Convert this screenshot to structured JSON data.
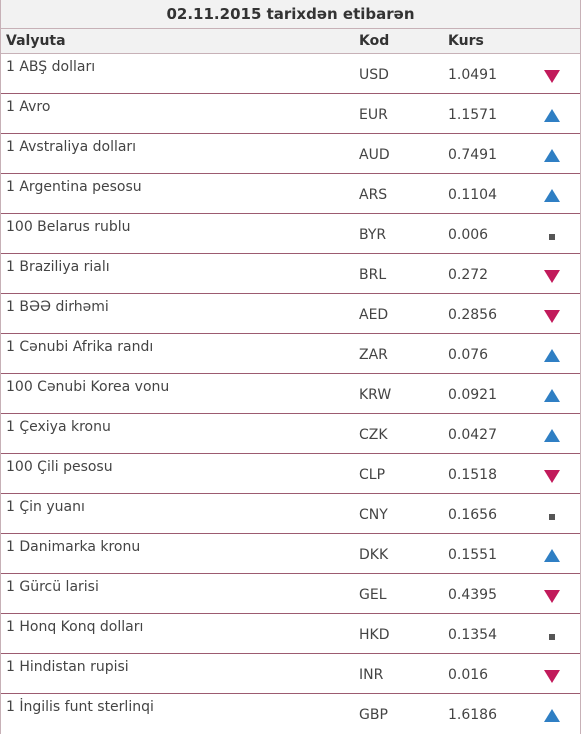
{
  "caption": "02.11.2015 tarixdən etibarən",
  "headers": {
    "currency": "Valyuta",
    "code": "Kod",
    "rate": "Kurs"
  },
  "colors": {
    "up": "#2f7fc4",
    "down": "#c21a5b",
    "same": "#555555",
    "row_border": "#9c5b70"
  },
  "rows": [
    {
      "name": "1 ABŞ dolları",
      "code": "USD",
      "rate": "1.0491",
      "trend": "down"
    },
    {
      "name": "1 Avro",
      "code": "EUR",
      "rate": "1.1571",
      "trend": "up"
    },
    {
      "name": "1 Avstraliya dolları",
      "code": "AUD",
      "rate": "0.7491",
      "trend": "up"
    },
    {
      "name": "1 Argentina pesosu",
      "code": "ARS",
      "rate": "0.1104",
      "trend": "up"
    },
    {
      "name": "100 Belarus rublu",
      "code": "BYR",
      "rate": "0.006",
      "trend": "same"
    },
    {
      "name": "1 Braziliya rialı",
      "code": "BRL",
      "rate": "0.272",
      "trend": "down"
    },
    {
      "name": "1 BƏƏ dirhəmi",
      "code": "AED",
      "rate": "0.2856",
      "trend": "down"
    },
    {
      "name": "1 Cənubi Afrika randı",
      "code": "ZAR",
      "rate": "0.076",
      "trend": "up"
    },
    {
      "name": "100 Cənubi Korea vonu",
      "code": "KRW",
      "rate": "0.0921",
      "trend": "up"
    },
    {
      "name": "1 Çexiya kronu",
      "code": "CZK",
      "rate": "0.0427",
      "trend": "up"
    },
    {
      "name": "100 Çili pesosu",
      "code": "CLP",
      "rate": "0.1518",
      "trend": "down"
    },
    {
      "name": "1 Çin yuanı",
      "code": "CNY",
      "rate": "0.1656",
      "trend": "same"
    },
    {
      "name": "1 Danimarka kronu",
      "code": "DKK",
      "rate": "0.1551",
      "trend": "up"
    },
    {
      "name": "1 Gürcü larisi",
      "code": "GEL",
      "rate": "0.4395",
      "trend": "down"
    },
    {
      "name": "1 Honq Konq dolları",
      "code": "HKD",
      "rate": "0.1354",
      "trend": "same"
    },
    {
      "name": "1 Hindistan rupisi",
      "code": "INR",
      "rate": "0.016",
      "trend": "down"
    },
    {
      "name": "1 İngilis funt sterlinqi",
      "code": "GBP",
      "rate": "1.6186",
      "trend": "up"
    }
  ]
}
